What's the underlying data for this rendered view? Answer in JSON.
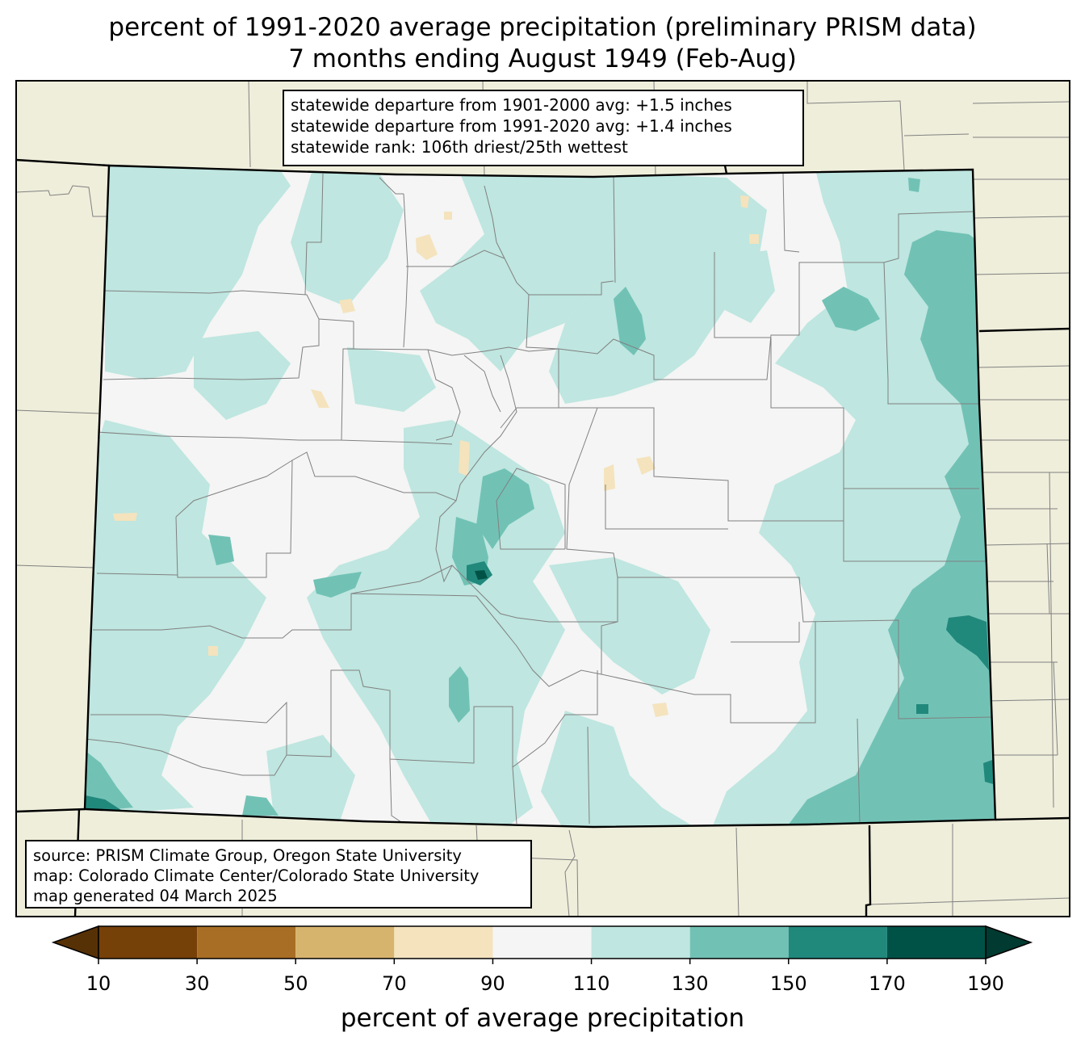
{
  "title": {
    "line1": "percent of 1991-2020 average precipitation (preliminary PRISM data)",
    "line2": "7 months ending August 1949 (Feb-Aug)"
  },
  "stats": {
    "line1": "statewide departure from 1901-2000 avg: +1.5 inches",
    "line2": "statewide departure from 1991-2020 avg: +1.4 inches",
    "line3": "statewide rank: 106th driest/25th wettest"
  },
  "source": {
    "line1": "source: PRISM Climate Group, Oregon State University",
    "line2": "map: Colorado Climate Center/Colorado State University",
    "line3": "map generated 04 March 2025"
  },
  "colorbar": {
    "label": "percent of average precipitation",
    "ticks": [
      "10",
      "30",
      "50",
      "70",
      "90",
      "110",
      "130",
      "150",
      "170",
      "190"
    ],
    "bins": [
      {
        "from": 10,
        "to": 30,
        "color": "#764009"
      },
      {
        "from": 30,
        "to": 50,
        "color": "#a96e25"
      },
      {
        "from": 50,
        "to": 70,
        "color": "#d7b46e"
      },
      {
        "from": 70,
        "to": 90,
        "color": "#f4e3bd"
      },
      {
        "from": 90,
        "to": 110,
        "color": "#f4f5f4"
      },
      {
        "from": 110,
        "to": 130,
        "color": "#bfe6e0"
      },
      {
        "from": 130,
        "to": 150,
        "color": "#71c2b5"
      },
      {
        "from": 150,
        "to": 170,
        "color": "#21887c"
      },
      {
        "from": 170,
        "to": 190,
        "color": "#005247"
      }
    ],
    "under_color": "#573106",
    "over_color": "#003a30"
  },
  "colors": {
    "land_outside": "#efeedb",
    "state_border": "#000000",
    "county_border": "#808080"
  }
}
